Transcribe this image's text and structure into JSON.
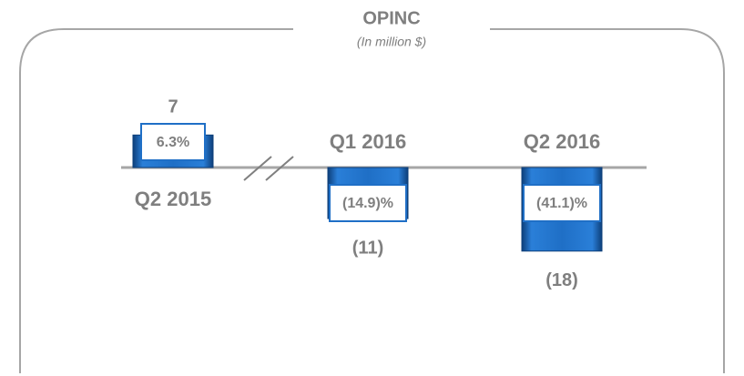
{
  "chart_data": {
    "type": "bar",
    "title": "OPINC",
    "subtitle": "(In million $)",
    "categories": [
      "Q2 2015",
      "Q1 2016",
      "Q2 2016"
    ],
    "values": [
      7,
      -11,
      -18
    ],
    "value_labels": [
      "7",
      "(11)",
      "(18)"
    ],
    "margin_labels": [
      "6.3%",
      "(14.9)%",
      "(41.1)%"
    ],
    "color": "#1f6fc6"
  }
}
